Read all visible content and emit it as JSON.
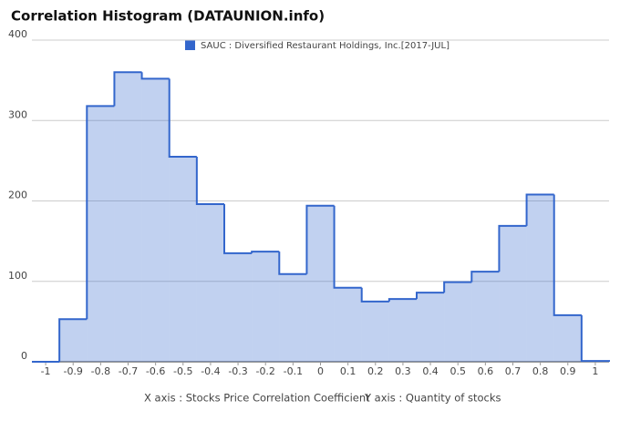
{
  "chart_data": {
    "type": "histogram",
    "title": "Correlation Histogram (DATAUNION.info)",
    "x_label": "X axis : Stocks Price Correlation Coefficient",
    "y_label": "Y axis : Quantity of stocks",
    "bins": [
      -1.05,
      -0.95,
      -0.85,
      -0.75,
      -0.65,
      -0.55,
      -0.45,
      -0.35,
      -0.25,
      -0.15,
      -0.05,
      0.05,
      0.15,
      0.25,
      0.35,
      0.45,
      0.55,
      0.65,
      0.75,
      0.85,
      0.95,
      1.05
    ],
    "series": [
      {
        "name": "SAUC : Diversified Restaurant Holdings, Inc.[2017-JUL]",
        "color": "#3366cc",
        "values": [
          0,
          53,
          318,
          360,
          352,
          255,
          196,
          135,
          137,
          109,
          194,
          92,
          75,
          78,
          86,
          99,
          112,
          169,
          208,
          58,
          1
        ]
      }
    ],
    "xlim": [
      -1.05,
      1.05
    ],
    "ylim": [
      0,
      400
    ],
    "xticks": [
      -1,
      -0.9,
      -0.8,
      -0.7,
      -0.6,
      -0.5,
      -0.4,
      -0.3,
      -0.2,
      -0.1,
      0,
      0.1,
      0.2,
      0.3,
      0.4,
      0.5,
      0.6,
      0.7,
      0.8,
      0.9,
      1
    ],
    "yticks": [
      0,
      100,
      200,
      300,
      400
    ],
    "grid": true
  }
}
